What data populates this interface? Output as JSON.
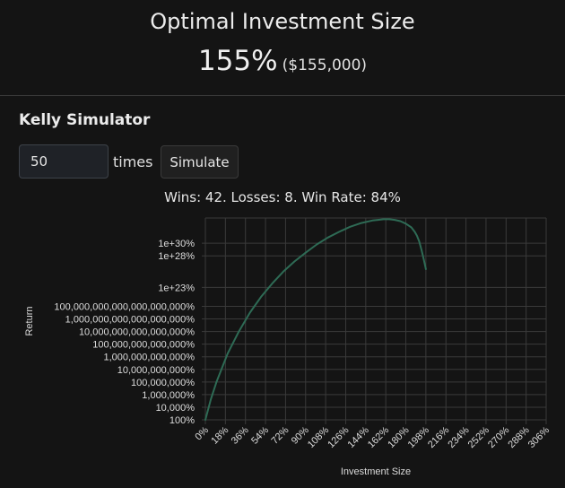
{
  "header": {
    "title": "Optimal Investment Size",
    "percent": "155%",
    "dollars": "($155,000)"
  },
  "simulator": {
    "title": "Kelly Simulator",
    "times_value": "50",
    "times_label": "times",
    "simulate_label": "Simulate",
    "stats": "Wins: 42. Losses: 8. Win Rate: 84%"
  },
  "colors": {
    "background": "#141414",
    "line": "#2e6b55",
    "grid": "#3a3a3a"
  },
  "chart_data": {
    "type": "line",
    "xlabel": "Investment Size",
    "ylabel": "Return",
    "x_ticks": [
      "0%",
      "18%",
      "36%",
      "54%",
      "72%",
      "90%",
      "108%",
      "126%",
      "144%",
      "162%",
      "180%",
      "198%",
      "216%",
      "234%",
      "252%",
      "270%",
      "288%",
      "306%"
    ],
    "y_ticks": [
      "100%",
      "10,000%",
      "1,000,000%",
      "100,000,000%",
      "10,000,000,000%",
      "1,000,000,000,000%",
      "100,000,000,000,000%",
      "10,000,000,000,000,000%",
      "1,000,000,000,000,000,000%",
      "100,000,000,000,000,000,000%",
      "1e+23%",
      "1e+28%",
      "1e+30%"
    ],
    "y_tick_exponents": [
      2,
      4,
      6,
      8,
      10,
      12,
      14,
      16,
      18,
      20,
      23,
      28,
      30
    ],
    "xlim": [
      0,
      306
    ],
    "series": [
      {
        "x": [
          0,
          5,
          10,
          20,
          30,
          40,
          50,
          60,
          70,
          80,
          90,
          100,
          110,
          120,
          130,
          140,
          150,
          155,
          160,
          165,
          170,
          175,
          180,
          185,
          188,
          190,
          192,
          194,
          196,
          198
        ],
        "y_log10": [
          2,
          5.3,
          8.0,
          12.5,
          16.0,
          19.0,
          21.5,
          23.6,
          25.5,
          27.1,
          28.5,
          29.8,
          30.9,
          31.8,
          32.6,
          33.2,
          33.6,
          33.7,
          33.8,
          33.8,
          33.7,
          33.5,
          33.1,
          32.5,
          31.8,
          31.2,
          30.3,
          29.0,
          27.5,
          25.9
        ]
      }
    ]
  }
}
